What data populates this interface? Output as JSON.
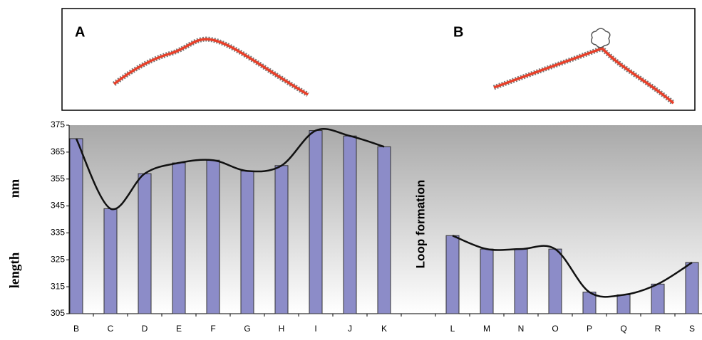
{
  "panels": {
    "left_label": "A",
    "right_label": "B"
  },
  "chart_data": {
    "type": "bar",
    "y_label": "length",
    "y_unit": "nm",
    "annotation": "Loop formation",
    "categories": [
      "B",
      "C",
      "D",
      "E",
      "F",
      "G",
      "H",
      "I",
      "J",
      "K",
      null,
      "L",
      "M",
      "N",
      "O",
      "P",
      "Q",
      "R",
      "S"
    ],
    "values": [
      370,
      344,
      357,
      361,
      362,
      358,
      360,
      373,
      371,
      367,
      null,
      334,
      329,
      329,
      329,
      313,
      312,
      316,
      324
    ],
    "color": "#8c8cc8",
    "trend": true,
    "ylim": [
      305,
      375
    ],
    "yticks": [
      305,
      315,
      325,
      335,
      345,
      355,
      365,
      375
    ]
  }
}
